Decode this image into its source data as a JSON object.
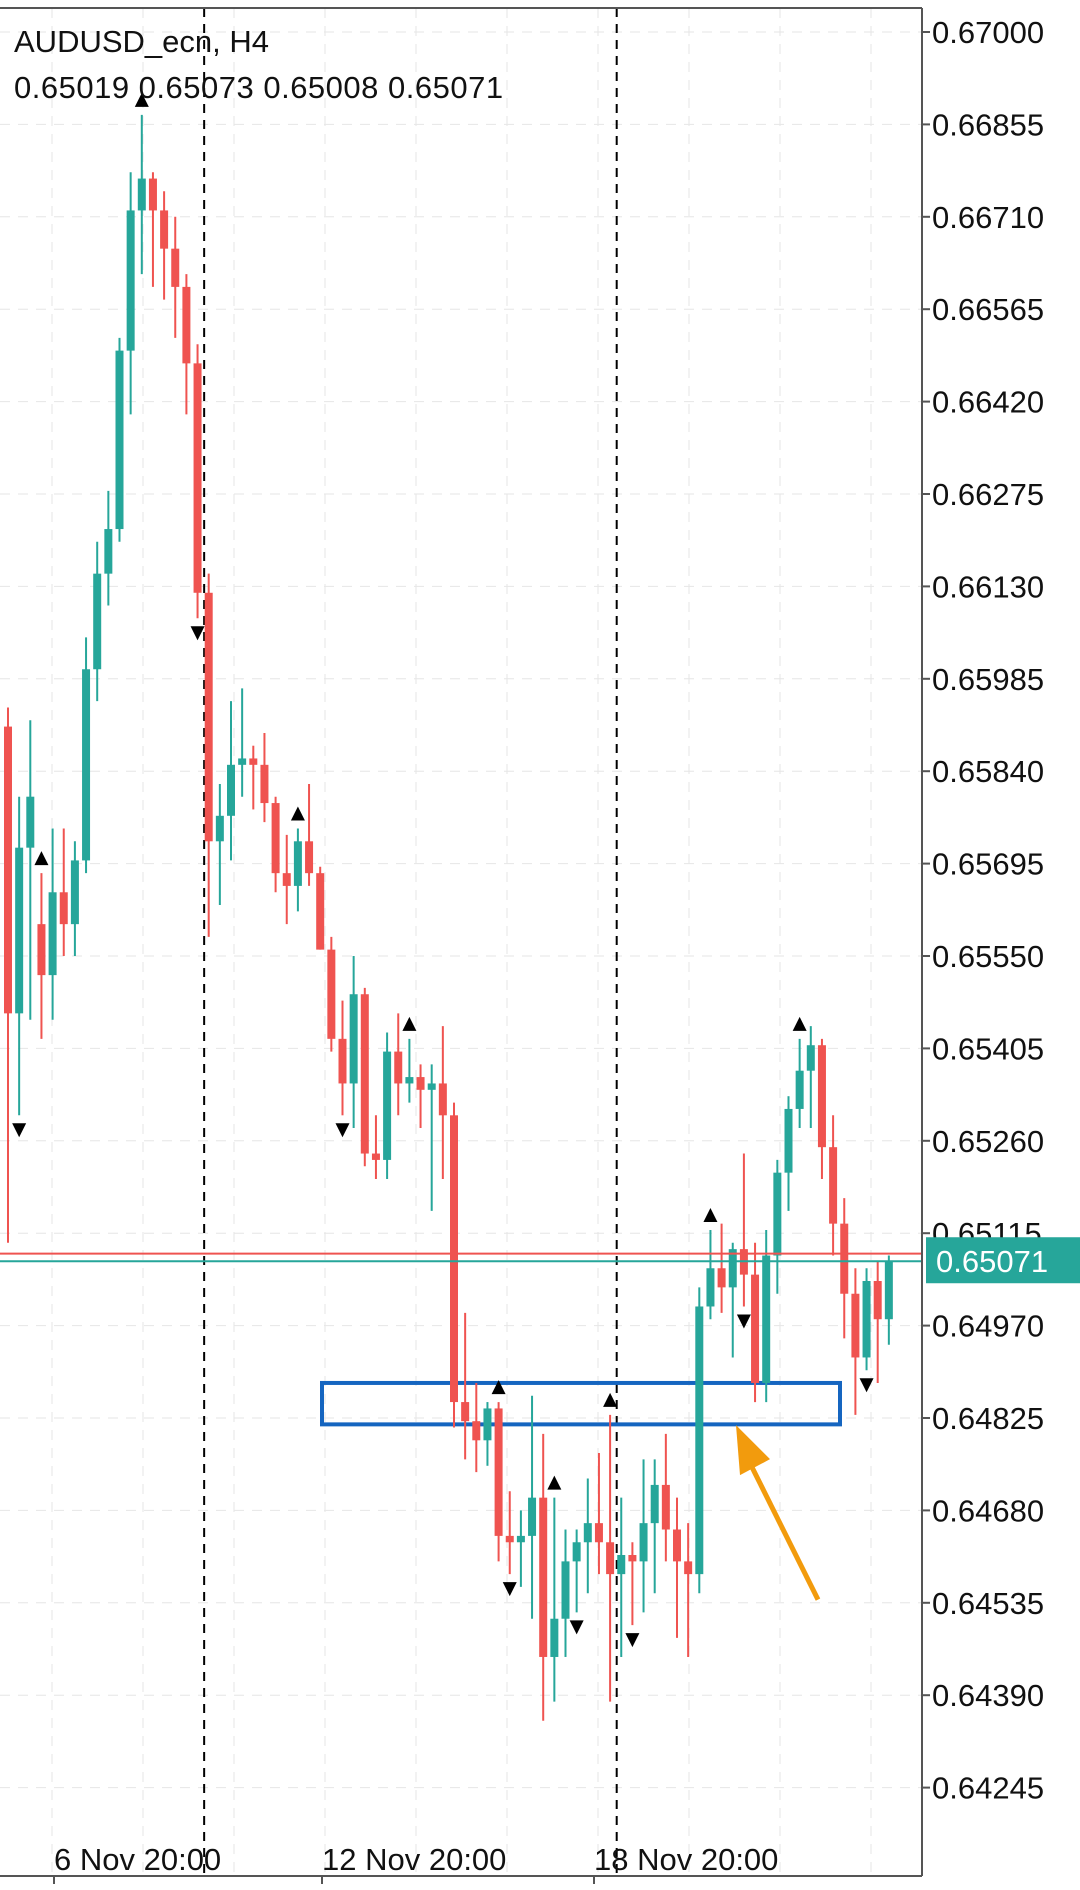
{
  "header": {
    "symbol": "AUDUSD_ecn, H4",
    "ohlc": "0.65019 0.65073 0.65008 0.65071"
  },
  "current_price_label": "0.65071",
  "colors": {
    "bull": "#26a69a",
    "bear": "#ef5350",
    "arrow": "#f29b0d",
    "box": "#1565c0",
    "bid_line": "#26a69a",
    "ask_line": "#ef5350",
    "grid": "#e6e6e6",
    "fractal": "#000000"
  },
  "chart_data": {
    "type": "candlestick",
    "timeframe": "H4",
    "ylim": [
      0.6411,
      0.6705
    ],
    "y_ticks": [
      "0.67000",
      "0.66855",
      "0.66710",
      "0.66565",
      "0.66420",
      "0.66275",
      "0.66130",
      "0.65985",
      "0.65840",
      "0.65695",
      "0.65550",
      "0.65405",
      "0.65260",
      "0.65115",
      "0.64970",
      "0.64825",
      "0.64680",
      "0.64535",
      "0.64390",
      "0.64245"
    ],
    "x_labels": [
      {
        "label": "6 Nov 20:00",
        "bar": 5
      },
      {
        "label": "12 Nov 20:00",
        "bar": 34
      },
      {
        "label": "18 Nov 20:00",
        "bar": 64
      }
    ],
    "vertical_separators_bar": [
      21,
      58
    ],
    "bid_price": 0.65071,
    "ask_price": 0.65083,
    "zone": {
      "bar_from": 35,
      "bar_to": 91,
      "price_top": 0.6488,
      "price_bottom": 0.64815
    },
    "arrow": {
      "from_bar": 89,
      "from_price": 0.6454,
      "to_bar": 79,
      "to_price": 0.6482
    },
    "candles": [
      [
        0.6591,
        0.6594,
        0.651,
        0.6546
      ],
      [
        0.6546,
        0.658,
        0.653,
        0.6572
      ],
      [
        0.6572,
        0.6592,
        0.6545,
        0.658
      ],
      [
        0.656,
        0.6568,
        0.6542,
        0.6552
      ],
      [
        0.6552,
        0.6575,
        0.6545,
        0.6565
      ],
      [
        0.6565,
        0.6575,
        0.6555,
        0.656
      ],
      [
        0.656,
        0.6573,
        0.6555,
        0.657
      ],
      [
        0.657,
        0.6605,
        0.6568,
        0.66
      ],
      [
        0.66,
        0.662,
        0.6595,
        0.6615
      ],
      [
        0.6615,
        0.6628,
        0.661,
        0.6622
      ],
      [
        0.6622,
        0.6652,
        0.662,
        0.665
      ],
      [
        0.665,
        0.6678,
        0.664,
        0.6672
      ],
      [
        0.6672,
        0.6687,
        0.6662,
        0.6677
      ],
      [
        0.6677,
        0.6678,
        0.666,
        0.6672
      ],
      [
        0.6672,
        0.6675,
        0.6658,
        0.6666
      ],
      [
        0.6666,
        0.6671,
        0.6652,
        0.666
      ],
      [
        0.666,
        0.6662,
        0.664,
        0.6648
      ],
      [
        0.6648,
        0.6651,
        0.6608,
        0.6612
      ],
      [
        0.6612,
        0.6615,
        0.6558,
        0.6573
      ],
      [
        0.6573,
        0.6582,
        0.6563,
        0.6577
      ],
      [
        0.6577,
        0.6595,
        0.657,
        0.6585
      ],
      [
        0.6585,
        0.6597,
        0.658,
        0.6586
      ],
      [
        0.6586,
        0.6588,
        0.6578,
        0.6585
      ],
      [
        0.6585,
        0.659,
        0.6576,
        0.6579
      ],
      [
        0.6579,
        0.658,
        0.6565,
        0.6568
      ],
      [
        0.6568,
        0.6574,
        0.656,
        0.6566
      ],
      [
        0.6566,
        0.6575,
        0.6562,
        0.6573
      ],
      [
        0.6573,
        0.6582,
        0.6566,
        0.6568
      ],
      [
        0.6568,
        0.6569,
        0.6556,
        0.6556
      ],
      [
        0.6556,
        0.6558,
        0.654,
        0.6542
      ],
      [
        0.6542,
        0.6548,
        0.653,
        0.6535
      ],
      [
        0.6535,
        0.6555,
        0.6528,
        0.6549
      ],
      [
        0.6549,
        0.655,
        0.6522,
        0.6524
      ],
      [
        0.6524,
        0.653,
        0.652,
        0.6523
      ],
      [
        0.6523,
        0.6543,
        0.652,
        0.654
      ],
      [
        0.654,
        0.6546,
        0.653,
        0.6535
      ],
      [
        0.6535,
        0.6542,
        0.6532,
        0.6536
      ],
      [
        0.6536,
        0.6538,
        0.6528,
        0.6534
      ],
      [
        0.6534,
        0.6538,
        0.6515,
        0.6535
      ],
      [
        0.6535,
        0.6544,
        0.652,
        0.653
      ],
      [
        0.653,
        0.6532,
        0.6481,
        0.6485
      ],
      [
        0.6485,
        0.6499,
        0.6476,
        0.6482
      ],
      [
        0.6482,
        0.6488,
        0.6474,
        0.6479
      ],
      [
        0.6479,
        0.6485,
        0.6475,
        0.6484
      ],
      [
        0.6484,
        0.6485,
        0.646,
        0.6464
      ],
      [
        0.6464,
        0.6471,
        0.6458,
        0.6463
      ],
      [
        0.6463,
        0.6468,
        0.6456,
        0.6464
      ],
      [
        0.6464,
        0.6486,
        0.6451,
        0.647
      ],
      [
        0.647,
        0.648,
        0.6435,
        0.6445
      ],
      [
        0.6445,
        0.647,
        0.6438,
        0.6451
      ],
      [
        0.6451,
        0.6465,
        0.6445,
        0.646
      ],
      [
        0.646,
        0.6465,
        0.6452,
        0.6463
      ],
      [
        0.6463,
        0.6473,
        0.6455,
        0.6466
      ],
      [
        0.6466,
        0.6477,
        0.6458,
        0.6463
      ],
      [
        0.6463,
        0.6483,
        0.6438,
        0.6458
      ],
      [
        0.6458,
        0.647,
        0.6445,
        0.6461
      ],
      [
        0.6461,
        0.6463,
        0.645,
        0.646
      ],
      [
        0.646,
        0.6476,
        0.6452,
        0.6466
      ],
      [
        0.6466,
        0.6476,
        0.6455,
        0.6472
      ],
      [
        0.6472,
        0.648,
        0.646,
        0.6465
      ],
      [
        0.6465,
        0.647,
        0.6448,
        0.646
      ],
      [
        0.646,
        0.6466,
        0.6445,
        0.6458
      ],
      [
        0.6458,
        0.6503,
        0.6455,
        0.65
      ],
      [
        0.65,
        0.6512,
        0.6498,
        0.6506
      ],
      [
        0.6506,
        0.6513,
        0.6499,
        0.6503
      ],
      [
        0.6503,
        0.651,
        0.6492,
        0.6509
      ],
      [
        0.6509,
        0.6524,
        0.65,
        0.6505
      ],
      [
        0.6505,
        0.651,
        0.6485,
        0.6488
      ],
      [
        0.6488,
        0.6512,
        0.6485,
        0.6508
      ],
      [
        0.6508,
        0.6523,
        0.6502,
        0.6521
      ],
      [
        0.6521,
        0.6533,
        0.6515,
        0.6531
      ],
      [
        0.6531,
        0.6542,
        0.6528,
        0.6537
      ],
      [
        0.6537,
        0.6544,
        0.6528,
        0.6541
      ],
      [
        0.6541,
        0.6542,
        0.652,
        0.6525
      ],
      [
        0.6525,
        0.653,
        0.6508,
        0.6513
      ],
      [
        0.6513,
        0.6517,
        0.6495,
        0.6502
      ],
      [
        0.6502,
        0.6506,
        0.6483,
        0.6492
      ],
      [
        0.6492,
        0.6506,
        0.649,
        0.6504
      ],
      [
        0.6504,
        0.6507,
        0.6488,
        0.6498
      ],
      [
        0.6498,
        0.6508,
        0.6494,
        0.6507
      ]
    ],
    "fractals": [
      {
        "bar": 1,
        "dir": "down"
      },
      {
        "bar": 3,
        "dir": "up"
      },
      {
        "bar": 12,
        "dir": "up"
      },
      {
        "bar": 17,
        "dir": "down"
      },
      {
        "bar": 26,
        "dir": "up"
      },
      {
        "bar": 30,
        "dir": "down"
      },
      {
        "bar": 36,
        "dir": "up"
      },
      {
        "bar": 44,
        "dir": "up"
      },
      {
        "bar": 45,
        "dir": "down"
      },
      {
        "bar": 49,
        "dir": "up"
      },
      {
        "bar": 51,
        "dir": "down"
      },
      {
        "bar": 54,
        "dir": "up"
      },
      {
        "bar": 56,
        "dir": "down"
      },
      {
        "bar": 63,
        "dir": "up"
      },
      {
        "bar": 66,
        "dir": "down"
      },
      {
        "bar": 71,
        "dir": "up"
      },
      {
        "bar": 77,
        "dir": "down"
      }
    ]
  }
}
